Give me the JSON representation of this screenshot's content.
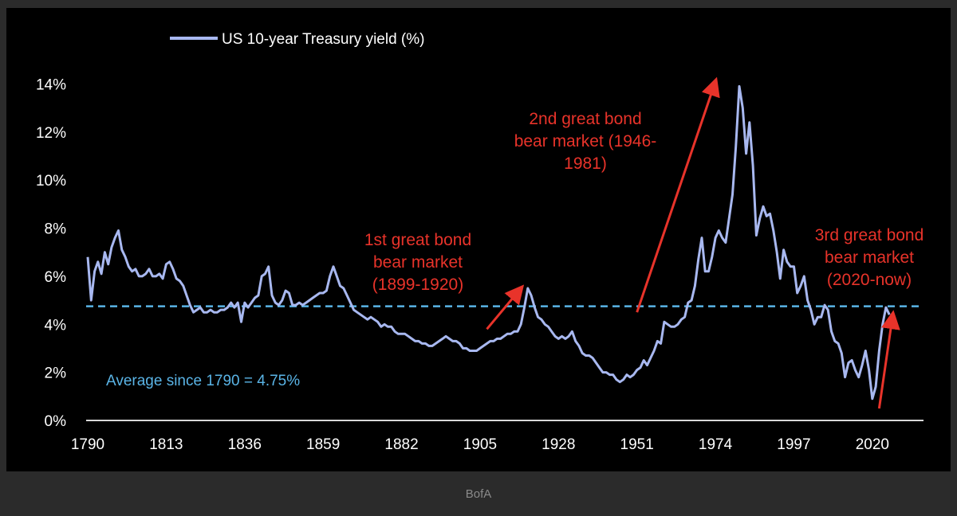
{
  "source_caption": "BofA",
  "colors": {
    "background": "#000000",
    "series": "#a8b8f0",
    "average_line": "#5ab4e6",
    "annotation": "#e8332a",
    "axis": "#d9d9d9",
    "tick_text": "#ffffff",
    "page": "#2b2b2b",
    "caption": "#8a8a8a"
  },
  "chart_data": {
    "type": "line",
    "title": "",
    "xlabel": "",
    "ylabel": "",
    "xlim": [
      1790,
      2035
    ],
    "ylim": [
      0,
      16
    ],
    "grid": false,
    "legend_position": "top-left",
    "x_ticks": [
      "1790",
      "1813",
      "1836",
      "1859",
      "1882",
      "1905",
      "1928",
      "1951",
      "1974",
      "1997",
      "2020"
    ],
    "y_ticks": [
      "0%",
      "2%",
      "4%",
      "6%",
      "8%",
      "10%",
      "12%",
      "14%"
    ],
    "series": [
      {
        "name": "US 10-year Treasury yield (%)",
        "points": [
          [
            1790,
            6.8
          ],
          [
            1791,
            5.0
          ],
          [
            1792,
            6.2
          ],
          [
            1793,
            6.6
          ],
          [
            1794,
            6.1
          ],
          [
            1795,
            7.0
          ],
          [
            1796,
            6.5
          ],
          [
            1797,
            7.2
          ],
          [
            1798,
            7.6
          ],
          [
            1799,
            7.9
          ],
          [
            1800,
            7.1
          ],
          [
            1801,
            6.8
          ],
          [
            1802,
            6.4
          ],
          [
            1803,
            6.2
          ],
          [
            1804,
            6.3
          ],
          [
            1805,
            6.0
          ],
          [
            1806,
            6.0
          ],
          [
            1807,
            6.1
          ],
          [
            1808,
            6.3
          ],
          [
            1809,
            6.0
          ],
          [
            1810,
            6.0
          ],
          [
            1811,
            6.1
          ],
          [
            1812,
            5.9
          ],
          [
            1813,
            6.5
          ],
          [
            1814,
            6.6
          ],
          [
            1815,
            6.3
          ],
          [
            1816,
            5.9
          ],
          [
            1817,
            5.8
          ],
          [
            1818,
            5.6
          ],
          [
            1819,
            5.2
          ],
          [
            1820,
            4.8
          ],
          [
            1821,
            4.5
          ],
          [
            1822,
            4.6
          ],
          [
            1823,
            4.7
          ],
          [
            1824,
            4.5
          ],
          [
            1825,
            4.5
          ],
          [
            1826,
            4.6
          ],
          [
            1827,
            4.5
          ],
          [
            1828,
            4.5
          ],
          [
            1829,
            4.6
          ],
          [
            1830,
            4.6
          ],
          [
            1831,
            4.7
          ],
          [
            1832,
            4.9
          ],
          [
            1833,
            4.7
          ],
          [
            1834,
            4.9
          ],
          [
            1835,
            4.1
          ],
          [
            1836,
            4.9
          ],
          [
            1837,
            4.7
          ],
          [
            1838,
            4.9
          ],
          [
            1839,
            5.1
          ],
          [
            1840,
            5.2
          ],
          [
            1841,
            6.0
          ],
          [
            1842,
            6.1
          ],
          [
            1843,
            6.4
          ],
          [
            1844,
            5.2
          ],
          [
            1845,
            4.9
          ],
          [
            1846,
            4.8
          ],
          [
            1847,
            5.0
          ],
          [
            1848,
            5.4
          ],
          [
            1849,
            5.3
          ],
          [
            1850,
            4.8
          ],
          [
            1851,
            4.8
          ],
          [
            1852,
            4.9
          ],
          [
            1853,
            4.8
          ],
          [
            1854,
            4.9
          ],
          [
            1855,
            5.0
          ],
          [
            1856,
            5.1
          ],
          [
            1857,
            5.2
          ],
          [
            1858,
            5.3
          ],
          [
            1859,
            5.3
          ],
          [
            1860,
            5.4
          ],
          [
            1861,
            6.0
          ],
          [
            1862,
            6.4
          ],
          [
            1863,
            6.0
          ],
          [
            1864,
            5.6
          ],
          [
            1865,
            5.5
          ],
          [
            1866,
            5.2
          ],
          [
            1867,
            4.9
          ],
          [
            1868,
            4.6
          ],
          [
            1869,
            4.5
          ],
          [
            1870,
            4.4
          ],
          [
            1871,
            4.3
          ],
          [
            1872,
            4.2
          ],
          [
            1873,
            4.3
          ],
          [
            1874,
            4.2
          ],
          [
            1875,
            4.1
          ],
          [
            1876,
            3.9
          ],
          [
            1877,
            4.0
          ],
          [
            1878,
            3.9
          ],
          [
            1879,
            3.9
          ],
          [
            1880,
            3.7
          ],
          [
            1881,
            3.6
          ],
          [
            1882,
            3.6
          ],
          [
            1883,
            3.6
          ],
          [
            1884,
            3.5
          ],
          [
            1885,
            3.4
          ],
          [
            1886,
            3.3
          ],
          [
            1887,
            3.3
          ],
          [
            1888,
            3.2
          ],
          [
            1889,
            3.2
          ],
          [
            1890,
            3.1
          ],
          [
            1891,
            3.1
          ],
          [
            1892,
            3.2
          ],
          [
            1893,
            3.3
          ],
          [
            1894,
            3.4
          ],
          [
            1895,
            3.5
          ],
          [
            1896,
            3.4
          ],
          [
            1897,
            3.3
          ],
          [
            1898,
            3.3
          ],
          [
            1899,
            3.2
          ],
          [
            1900,
            3.0
          ],
          [
            1901,
            3.0
          ],
          [
            1902,
            2.9
          ],
          [
            1903,
            2.9
          ],
          [
            1904,
            2.9
          ],
          [
            1905,
            3.0
          ],
          [
            1906,
            3.1
          ],
          [
            1907,
            3.2
          ],
          [
            1908,
            3.3
          ],
          [
            1909,
            3.3
          ],
          [
            1910,
            3.4
          ],
          [
            1911,
            3.4
          ],
          [
            1912,
            3.5
          ],
          [
            1913,
            3.6
          ],
          [
            1914,
            3.6
          ],
          [
            1915,
            3.7
          ],
          [
            1916,
            3.7
          ],
          [
            1917,
            4.0
          ],
          [
            1918,
            4.7
          ],
          [
            1919,
            5.5
          ],
          [
            1920,
            5.2
          ],
          [
            1921,
            4.7
          ],
          [
            1922,
            4.3
          ],
          [
            1923,
            4.2
          ],
          [
            1924,
            4.0
          ],
          [
            1925,
            3.9
          ],
          [
            1926,
            3.7
          ],
          [
            1927,
            3.5
          ],
          [
            1928,
            3.4
          ],
          [
            1929,
            3.5
          ],
          [
            1930,
            3.4
          ],
          [
            1931,
            3.5
          ],
          [
            1932,
            3.7
          ],
          [
            1933,
            3.3
          ],
          [
            1934,
            3.1
          ],
          [
            1935,
            2.8
          ],
          [
            1936,
            2.7
          ],
          [
            1937,
            2.7
          ],
          [
            1938,
            2.6
          ],
          [
            1939,
            2.4
          ],
          [
            1940,
            2.2
          ],
          [
            1941,
            2.0
          ],
          [
            1942,
            2.0
          ],
          [
            1943,
            1.9
          ],
          [
            1944,
            1.9
          ],
          [
            1945,
            1.7
          ],
          [
            1946,
            1.6
          ],
          [
            1947,
            1.7
          ],
          [
            1948,
            1.9
          ],
          [
            1949,
            1.8
          ],
          [
            1950,
            1.9
          ],
          [
            1951,
            2.1
          ],
          [
            1952,
            2.2
          ],
          [
            1953,
            2.5
          ],
          [
            1954,
            2.3
          ],
          [
            1955,
            2.6
          ],
          [
            1956,
            2.9
          ],
          [
            1957,
            3.3
          ],
          [
            1958,
            3.2
          ],
          [
            1959,
            4.1
          ],
          [
            1960,
            4.0
          ],
          [
            1961,
            3.9
          ],
          [
            1962,
            3.9
          ],
          [
            1963,
            4.0
          ],
          [
            1964,
            4.2
          ],
          [
            1965,
            4.3
          ],
          [
            1966,
            4.9
          ],
          [
            1967,
            5.0
          ],
          [
            1968,
            5.6
          ],
          [
            1969,
            6.7
          ],
          [
            1970,
            7.6
          ],
          [
            1971,
            6.2
          ],
          [
            1972,
            6.2
          ],
          [
            1973,
            6.8
          ],
          [
            1974,
            7.6
          ],
          [
            1975,
            7.9
          ],
          [
            1976,
            7.6
          ],
          [
            1977,
            7.4
          ],
          [
            1978,
            8.4
          ],
          [
            1979,
            9.4
          ],
          [
            1980,
            11.4
          ],
          [
            1981,
            13.9
          ],
          [
            1982,
            13.0
          ],
          [
            1983,
            11.1
          ],
          [
            1984,
            12.4
          ],
          [
            1985,
            10.6
          ],
          [
            1986,
            7.7
          ],
          [
            1987,
            8.4
          ],
          [
            1988,
            8.9
          ],
          [
            1989,
            8.5
          ],
          [
            1990,
            8.6
          ],
          [
            1991,
            7.9
          ],
          [
            1992,
            7.0
          ],
          [
            1993,
            5.9
          ],
          [
            1994,
            7.1
          ],
          [
            1995,
            6.6
          ],
          [
            1996,
            6.4
          ],
          [
            1997,
            6.4
          ],
          [
            1998,
            5.3
          ],
          [
            1999,
            5.6
          ],
          [
            2000,
            6.0
          ],
          [
            2001,
            5.0
          ],
          [
            2002,
            4.6
          ],
          [
            2003,
            4.0
          ],
          [
            2004,
            4.3
          ],
          [
            2005,
            4.3
          ],
          [
            2006,
            4.8
          ],
          [
            2007,
            4.6
          ],
          [
            2008,
            3.7
          ],
          [
            2009,
            3.3
          ],
          [
            2010,
            3.2
          ],
          [
            2011,
            2.8
          ],
          [
            2012,
            1.8
          ],
          [
            2013,
            2.4
          ],
          [
            2014,
            2.5
          ],
          [
            2015,
            2.1
          ],
          [
            2016,
            1.8
          ],
          [
            2017,
            2.3
          ],
          [
            2018,
            2.9
          ],
          [
            2019,
            2.1
          ],
          [
            2020,
            0.9
          ],
          [
            2021,
            1.4
          ],
          [
            2022,
            2.9
          ],
          [
            2023,
            4.0
          ],
          [
            2024,
            4.7
          ],
          [
            2025,
            4.4
          ]
        ]
      }
    ],
    "reference_line": {
      "value": 4.75,
      "label": "Average since 1790 = 4.75%"
    },
    "annotations": [
      {
        "lines": [
          "1st great bond",
          "bear market",
          "(1899-1920)"
        ],
        "arrow_from": [
          1907,
          3.8
        ],
        "arrow_to": [
          1917,
          5.5
        ]
      },
      {
        "lines": [
          "2nd great bond",
          "bear market (1946-",
          "1981)"
        ],
        "arrow_from": [
          1951,
          4.5
        ],
        "arrow_to": [
          1974,
          14.1
        ]
      },
      {
        "lines": [
          "3rd great bond",
          "bear market",
          "(2020-now)"
        ],
        "arrow_from": [
          2022,
          0.5
        ],
        "arrow_to": [
          2026,
          4.4
        ]
      }
    ]
  }
}
